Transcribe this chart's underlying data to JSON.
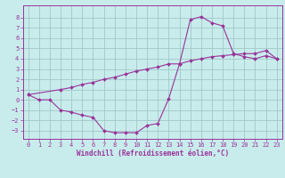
{
  "xlabel": "Windchill (Refroidissement éolien,°C)",
  "bg_color": "#c8ecec",
  "grid_color": "#a0c8c8",
  "line_color": "#993399",
  "marker_color": "#993399",
  "xlim": [
    -0.5,
    23.5
  ],
  "ylim": [
    -3.8,
    9.2
  ],
  "xticks": [
    0,
    1,
    2,
    3,
    4,
    5,
    6,
    7,
    8,
    9,
    10,
    11,
    12,
    13,
    14,
    15,
    16,
    17,
    18,
    19,
    20,
    21,
    22,
    23
  ],
  "yticks": [
    -3,
    -2,
    -1,
    0,
    1,
    2,
    3,
    4,
    5,
    6,
    7,
    8
  ],
  "line1_x": [
    0,
    1,
    2,
    3,
    4,
    5,
    6,
    7,
    8,
    9,
    10,
    11,
    12,
    13,
    14,
    15,
    16,
    17,
    18,
    19,
    20,
    21,
    22,
    23
  ],
  "line1_y": [
    0.5,
    0.0,
    0.0,
    -1.0,
    -1.2,
    -1.5,
    -1.7,
    -3.0,
    -3.2,
    -3.2,
    -3.2,
    -2.5,
    -2.3,
    0.1,
    3.5,
    7.8,
    8.1,
    7.5,
    7.2,
    4.5,
    4.2,
    4.0,
    4.3,
    4.0
  ],
  "line2_x": [
    0,
    3,
    4,
    5,
    6,
    7,
    8,
    9,
    10,
    11,
    12,
    13,
    14,
    15,
    16,
    17,
    18,
    19,
    20,
    21,
    22,
    23
  ],
  "line2_y": [
    0.5,
    1.0,
    1.2,
    1.5,
    1.7,
    2.0,
    2.2,
    2.5,
    2.8,
    3.0,
    3.2,
    3.5,
    3.5,
    3.8,
    4.0,
    4.2,
    4.3,
    4.4,
    4.5,
    4.5,
    4.8,
    4.0
  ]
}
